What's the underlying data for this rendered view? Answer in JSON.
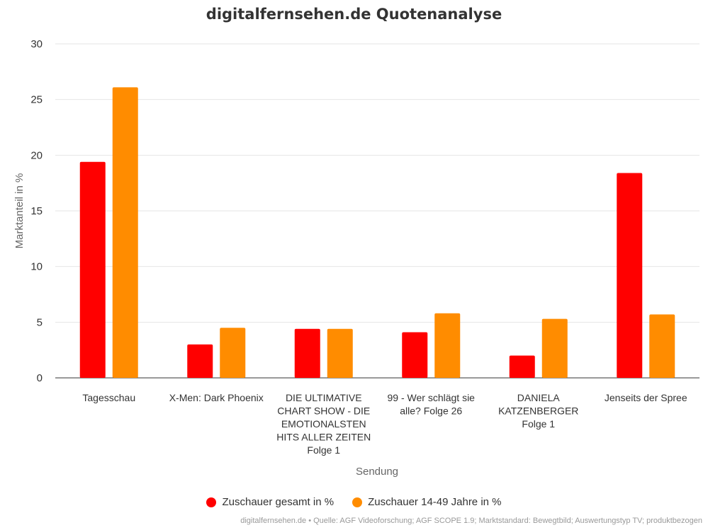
{
  "chart_data": {
    "type": "bar",
    "title": "digitalfernsehen.de Quotenanalyse",
    "xlabel": "Sendung",
    "ylabel": "Marktanteil in %",
    "ylim": [
      0,
      30
    ],
    "yticks": [
      0,
      5,
      10,
      15,
      20,
      25,
      30
    ],
    "grid": true,
    "legend_position": "bottom",
    "categories": [
      "Tagesschau",
      "X-Men: Dark Phoenix",
      "DIE ULTIMATIVE CHART SHOW - DIE EMOTIONALSTEN HITS ALLER ZEITEN Folge 1",
      "99 - Wer schlägt sie alle? Folge 26",
      "DANIELA KATZENBERGER Folge 1",
      "Jenseits der Spree"
    ],
    "category_label_lines": [
      [
        "Tagesschau"
      ],
      [
        "X-Men: Dark Phoenix"
      ],
      [
        "DIE ULTIMATIVE",
        "CHART SHOW - DIE",
        "EMOTIONALSTEN",
        "HITS ALLER ZEITEN",
        "Folge 1"
      ],
      [
        "99 - Wer schlägt sie",
        "alle? Folge 26"
      ],
      [
        "DANIELA",
        "KATZENBERGER",
        "Folge 1"
      ],
      [
        "Jenseits der Spree"
      ]
    ],
    "series": [
      {
        "name": "Zuschauer gesamt in %",
        "color": "#ff0000",
        "values": [
          19.4,
          3.0,
          4.4,
          4.1,
          2.0,
          18.4
        ]
      },
      {
        "name": "Zuschauer 14-49 Jahre in %",
        "color": "#ff8c00",
        "values": [
          26.1,
          4.5,
          4.4,
          5.8,
          5.3,
          5.7
        ]
      }
    ],
    "source": "digitalfernsehen.de • Quelle: AGF Videoforschung; AGF SCOPE 1.9; Marktstandard: Bewegtbild; Auswertungstyp TV; produktbezogen"
  }
}
